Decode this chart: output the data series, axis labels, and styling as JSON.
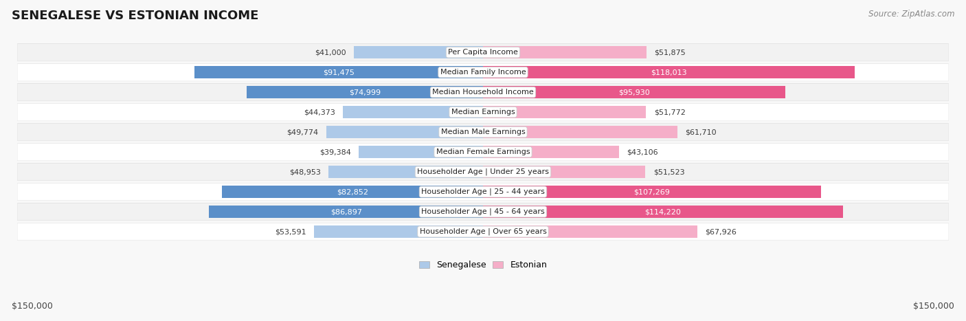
{
  "title": "SENEGALESE VS ESTONIAN INCOME",
  "source": "Source: ZipAtlas.com",
  "categories": [
    "Per Capita Income",
    "Median Family Income",
    "Median Household Income",
    "Median Earnings",
    "Median Male Earnings",
    "Median Female Earnings",
    "Householder Age | Under 25 years",
    "Householder Age | 25 - 44 years",
    "Householder Age | 45 - 64 years",
    "Householder Age | Over 65 years"
  ],
  "senegalese": [
    41000,
    91475,
    74999,
    44373,
    49774,
    39384,
    48953,
    82852,
    86897,
    53591
  ],
  "estonian": [
    51875,
    118013,
    95930,
    51772,
    61710,
    43106,
    51523,
    107269,
    114220,
    67926
  ],
  "senegalese_labels": [
    "$41,000",
    "$91,475",
    "$74,999",
    "$44,373",
    "$49,774",
    "$39,384",
    "$48,953",
    "$82,852",
    "$86,897",
    "$53,591"
  ],
  "estonian_labels": [
    "$51,875",
    "$118,013",
    "$95,930",
    "$51,772",
    "$61,710",
    "$43,106",
    "$51,523",
    "$107,269",
    "$114,220",
    "$67,926"
  ],
  "senegalese_color_normal": "#adc9e8",
  "senegalese_color_highlight": "#5b8fc9",
  "estonian_color_normal": "#f5aec8",
  "estonian_color_highlight": "#e8578a",
  "max_value": 150000,
  "highlight_rows": [
    1,
    2,
    7,
    8
  ],
  "row_colors": [
    "#f2f2f2",
    "#ffffff"
  ],
  "axis_label_left": "$150,000",
  "axis_label_right": "$150,000",
  "legend_senegalese": "Senegalese",
  "legend_estonian": "Estonian",
  "label_text_dark": "#3a3a3a",
  "label_text_white": "#ffffff"
}
